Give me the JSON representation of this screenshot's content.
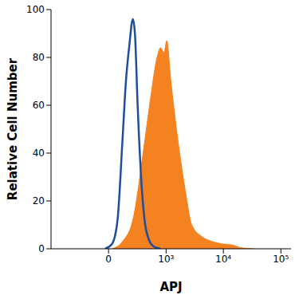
{
  "chart_data": {
    "type": "area",
    "x_label": "APJ",
    "y_label": "Relative Cell Number",
    "xlim": [
      -1000,
      150000
    ],
    "xticks": [
      0,
      {
        "value": 1000,
        "label": "10³"
      },
      {
        "value": 10000,
        "label": "10⁴"
      },
      {
        "value": 100000,
        "label": "10⁵"
      }
    ],
    "ylim": [
      0,
      100
    ],
    "yticks": [
      0,
      20,
      40,
      60,
      80,
      100
    ],
    "grid": false,
    "series": [
      {
        "type": "line",
        "color": "#1f4e9c",
        "x": [
          -28,
          28,
          74,
          118,
          152,
          188,
          229,
          255,
          292,
          344,
          403,
          484,
          594,
          796
        ],
        "values": [
          0,
          2,
          12,
          45,
          70,
          85,
          96,
          90,
          60,
          30,
          12,
          4,
          1,
          0
        ]
      },
      {
        "type": "area",
        "color": "#f58220",
        "x": [
          28,
          118,
          229,
          377,
          517,
          689,
          796,
          918,
          1029,
          1217,
          1524,
          1854,
          2254,
          2814,
          4272,
          6476,
          9817,
          14887,
          19655,
          34199
        ],
        "values": [
          0,
          3,
          12,
          40,
          62,
          80,
          84,
          82,
          87,
          70,
          50,
          35,
          22,
          10,
          5,
          3,
          2,
          1.5,
          0.5,
          0
        ]
      }
    ]
  }
}
